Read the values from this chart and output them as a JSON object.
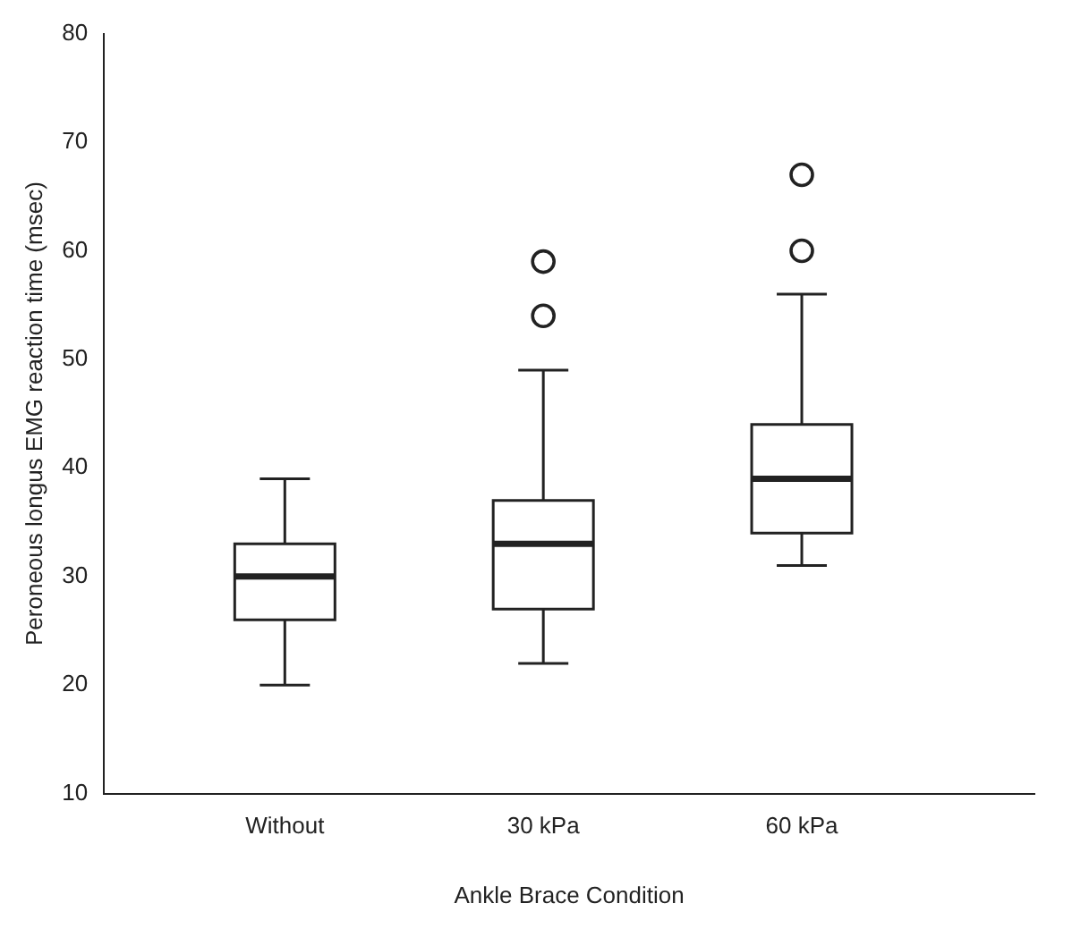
{
  "chart_data": {
    "type": "box",
    "xlabel": "Ankle Brace Condition",
    "ylabel": "Peroneous longus EMG reaction time (msec)",
    "categories": [
      "Without",
      "30 kPa",
      "60 kPa"
    ],
    "boxes": [
      {
        "low": 20,
        "q1": 26,
        "median": 30,
        "q3": 33,
        "high": 39
      },
      {
        "low": 22,
        "q1": 27,
        "median": 33,
        "q3": 37,
        "high": 49,
        "outliers": [
          54,
          59
        ]
      },
      {
        "low": 31,
        "q1": 34,
        "median": 39,
        "q3": 44,
        "high": 56,
        "outliers": [
          60,
          67
        ]
      }
    ],
    "ylim": [
      10,
      80
    ],
    "yticks": [
      10,
      20,
      30,
      40,
      50,
      60,
      70,
      80
    ]
  }
}
